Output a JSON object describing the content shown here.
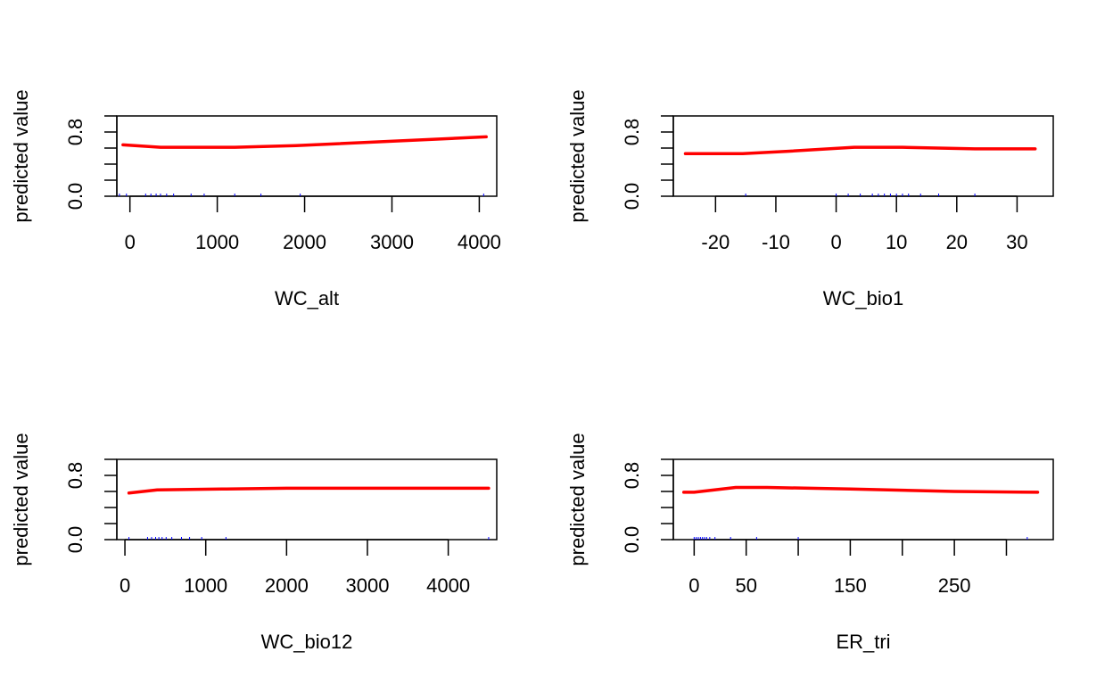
{
  "chart_data": [
    {
      "type": "line",
      "xlabel": "WC_alt",
      "ylabel": "predicted value",
      "xlim": [
        -150,
        4200
      ],
      "ylim": [
        0,
        1
      ],
      "x_ticks": [
        0,
        1000,
        2000,
        3000,
        4000
      ],
      "x_tick_labels": [
        "0",
        "1000",
        "2000",
        "3000",
        "4000"
      ],
      "y_ticks": [
        0,
        0.2,
        0.4,
        0.6,
        0.8,
        1.0
      ],
      "y_tick_labels": [
        "0.0",
        "",
        "",
        "",
        "0.8",
        ""
      ],
      "series": [
        {
          "values_x": [
            -80,
            350,
            1200,
            1900,
            4080
          ],
          "values_y": [
            0.64,
            0.61,
            0.61,
            0.63,
            0.74
          ]
        }
      ],
      "rug": [
        -120,
        -40,
        180,
        240,
        300,
        350,
        420,
        500,
        700,
        850,
        1200,
        1500,
        1950,
        4050
      ]
    },
    {
      "type": "line",
      "xlabel": "WC_bio1",
      "ylabel": "predicted value",
      "xlim": [
        -27,
        36
      ],
      "ylim": [
        0,
        1
      ],
      "x_ticks": [
        -20,
        -10,
        0,
        10,
        20,
        30
      ],
      "x_tick_labels": [
        "-20",
        "-10",
        "0",
        "10",
        "20",
        "30"
      ],
      "y_ticks": [
        0,
        0.2,
        0.4,
        0.6,
        0.8,
        1.0
      ],
      "y_tick_labels": [
        "0.0",
        "",
        "",
        "",
        "0.8",
        ""
      ],
      "series": [
        {
          "values_x": [
            -25,
            -15.5,
            -8,
            3,
            11,
            23,
            33
          ],
          "values_y": [
            0.53,
            0.53,
            0.56,
            0.61,
            0.61,
            0.59,
            0.59
          ]
        }
      ],
      "rug": [
        -15,
        0,
        2,
        4,
        6,
        7,
        8,
        9,
        10,
        11,
        12,
        14,
        17,
        23
      ]
    },
    {
      "type": "line",
      "xlabel": "WC_bio12",
      "ylabel": "predicted value",
      "xlim": [
        -100,
        4600
      ],
      "ylim": [
        0,
        1
      ],
      "x_ticks": [
        0,
        1000,
        2000,
        3000,
        4000
      ],
      "x_tick_labels": [
        "0",
        "1000",
        "2000",
        "3000",
        "4000"
      ],
      "y_ticks": [
        0,
        0.2,
        0.4,
        0.6,
        0.8,
        1.0
      ],
      "y_tick_labels": [
        "0.0",
        "",
        "",
        "",
        "0.8",
        ""
      ],
      "series": [
        {
          "values_x": [
            50,
            400,
            1200,
            2000,
            4500
          ],
          "values_y": [
            0.58,
            0.62,
            0.63,
            0.64,
            0.64
          ]
        }
      ],
      "rug": [
        50,
        280,
        330,
        380,
        420,
        460,
        510,
        580,
        700,
        800,
        950,
        1250,
        4500
      ]
    },
    {
      "type": "line",
      "xlabel": "ER_tri",
      "ylabel": "predicted value",
      "xlim": [
        -20,
        345
      ],
      "ylim": [
        0,
        1
      ],
      "x_ticks": [
        0,
        50,
        100,
        150,
        200,
        250,
        300
      ],
      "x_tick_labels": [
        "0",
        "50",
        "",
        "150",
        "",
        "250",
        ""
      ],
      "y_ticks": [
        0,
        0.2,
        0.4,
        0.6,
        0.8,
        1.0
      ],
      "y_tick_labels": [
        "0.0",
        "",
        "",
        "",
        "0.8",
        ""
      ],
      "series": [
        {
          "values_x": [
            -10,
            0,
            40,
            70,
            150,
            250,
            330
          ],
          "values_y": [
            0.59,
            0.59,
            0.65,
            0.65,
            0.63,
            0.6,
            0.59
          ]
        }
      ],
      "rug": [
        0,
        2,
        4,
        6,
        8,
        10,
        12,
        15,
        20,
        35,
        60,
        100,
        320
      ]
    }
  ],
  "colors": {
    "line": "#ff0000",
    "rug": "#0000ff",
    "axis": "#000000"
  }
}
